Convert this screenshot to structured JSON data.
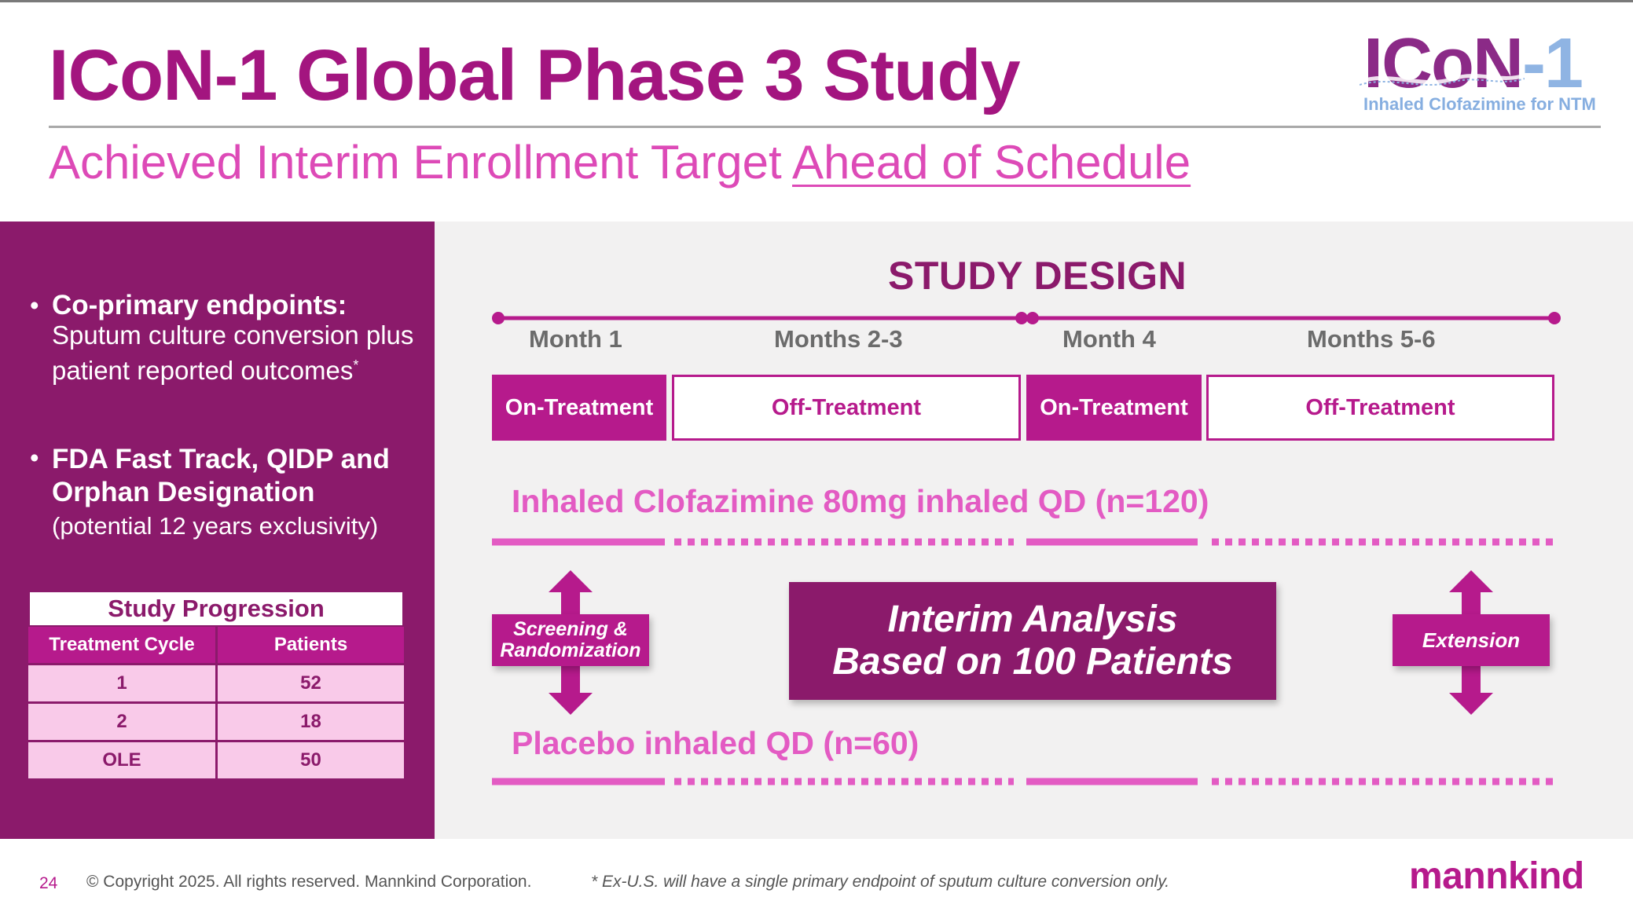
{
  "slide": {
    "title": "ICoN-1 Global Phase 3 Study",
    "subtitle_plain": "Achieved Interim Enrollment Target ",
    "subtitle_underlined": "Ahead of Schedule"
  },
  "logo": {
    "main_left": "ICoN",
    "main_right": "-1",
    "tagline": "Inhaled Clofazimine for NTM"
  },
  "left_panel": {
    "bullet1_heading": "Co-primary endpoints:",
    "bullet1_text": "Sputum culture conversion plus patient reported outcomes",
    "bullet1_sup": "*",
    "bullet2_heading": "FDA Fast Track, QIDP and Orphan Designation",
    "bullet2_note": "(potential 12 years exclusivity)",
    "bullet_char": "•"
  },
  "progression_table": {
    "title": "Study Progression",
    "headers": [
      "Treatment Cycle",
      "Patients"
    ],
    "rows": [
      {
        "cycle": "1",
        "patients": "52"
      },
      {
        "cycle": "2",
        "patients": "18"
      },
      {
        "cycle": "OLE",
        "patients": "50"
      }
    ]
  },
  "study_design": {
    "title": "STUDY DESIGN",
    "months": [
      "Month 1",
      "Months 2-3",
      "Month 4",
      "Months 5-6"
    ],
    "phases": [
      "On-Treatment",
      "Off-Treatment",
      "On-Treatment",
      "Off-Treatment"
    ],
    "arm_active": "Inhaled Clofazimine 80mg inhaled QD (n=120)",
    "arm_placebo": "Placebo inhaled QD (n=60)",
    "screening": "Screening & Randomization",
    "interim_line1": "Interim Analysis",
    "interim_line2": "Based on 100 Patients",
    "extension": "Extension"
  },
  "footer": {
    "page_number": "24",
    "copyright": "© Copyright 2025. All rights reserved. Mannkind Corporation.",
    "note": "* Ex-U.S. will have a single primary endpoint of sputum culture conversion only.",
    "brand": "mannkind"
  },
  "colors": {
    "magenta_dark": "#8b1a6b",
    "magenta": "#b61a8c",
    "magenta_light": "#e35bc3",
    "title": "#a3157f",
    "pink_cell": "#f9cae9",
    "panel_gray": "#f2f1f1"
  }
}
